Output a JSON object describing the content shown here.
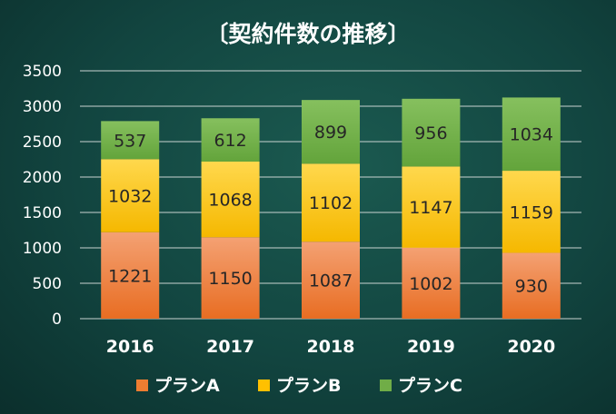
{
  "chart_data": {
    "type": "bar",
    "stacked": true,
    "title": "〔契約件数の推移〕",
    "xlabel": "",
    "ylabel": "",
    "categories": [
      "2016",
      "2017",
      "2018",
      "2019",
      "2020"
    ],
    "ylim": [
      0,
      3500
    ],
    "yticks": [
      0,
      500,
      1000,
      1500,
      2000,
      2500,
      3000,
      3500
    ],
    "grid": true,
    "legend_position": "bottom",
    "series": [
      {
        "name": "プランA",
        "color": "#ed7d31",
        "values": [
          1221,
          1150,
          1087,
          1002,
          930
        ]
      },
      {
        "name": "プランB",
        "color": "#ffc000",
        "values": [
          1032,
          1068,
          1102,
          1147,
          1159
        ]
      },
      {
        "name": "プランC",
        "color": "#70ad47",
        "values": [
          537,
          612,
          899,
          956,
          1034
        ]
      }
    ]
  }
}
